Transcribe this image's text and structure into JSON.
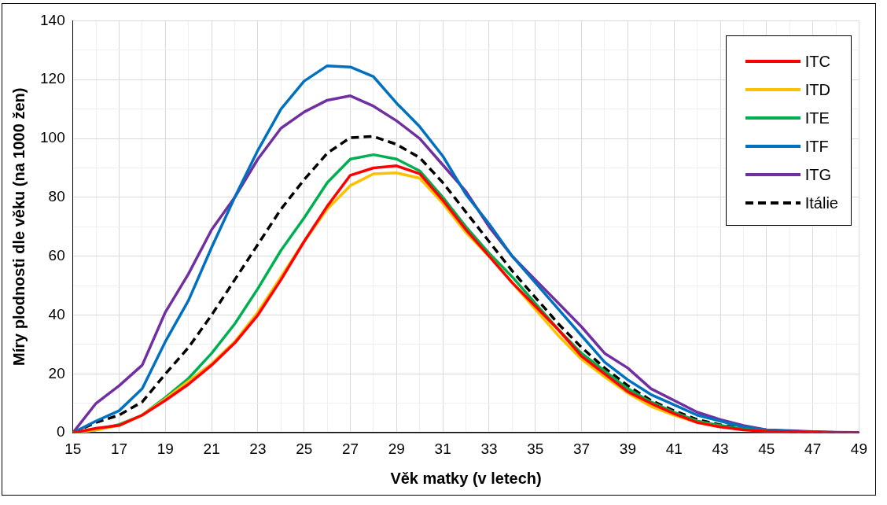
{
  "chart_data": {
    "type": "line",
    "xlabel": "Věk matky (v letech)",
    "ylabel": "Míry plodnosti dle věku (na 1000 žen)",
    "x": [
      15,
      16,
      17,
      18,
      19,
      20,
      21,
      22,
      23,
      24,
      25,
      26,
      27,
      28,
      29,
      30,
      31,
      32,
      33,
      34,
      35,
      36,
      37,
      38,
      39,
      40,
      41,
      42,
      43,
      44,
      45,
      46,
      47,
      48,
      49
    ],
    "xlim": [
      15,
      49
    ],
    "xticks": [
      15,
      {
        "value": 16,
        "label": null
      },
      17,
      {
        "value": 18,
        "label": null
      },
      19,
      {
        "value": 20,
        "label": null
      },
      21,
      {
        "value": 22,
        "label": null
      },
      23,
      {
        "value": 24,
        "label": null
      },
      25,
      {
        "value": 26,
        "label": null
      },
      27,
      {
        "value": 28,
        "label": null
      },
      29,
      {
        "value": 30,
        "label": null
      },
      31,
      {
        "value": 32,
        "label": null
      },
      33,
      {
        "value": 34,
        "label": null
      },
      35,
      {
        "value": 36,
        "label": null
      },
      37,
      {
        "value": 38,
        "label": null
      },
      39,
      {
        "value": 40,
        "label": null
      },
      41,
      {
        "value": 42,
        "label": null
      },
      43,
      {
        "value": 44,
        "label": null
      },
      45,
      {
        "value": 46,
        "label": null
      },
      47,
      {
        "value": 48,
        "label": null
      },
      49
    ],
    "ylim": [
      0,
      140
    ],
    "yticks": [
      0,
      {
        "value": 10,
        "label": null
      },
      20,
      {
        "value": 30,
        "label": null
      },
      40,
      {
        "value": 50,
        "label": null
      },
      60,
      {
        "value": 70,
        "label": null
      },
      80,
      {
        "value": 90,
        "label": null
      },
      100,
      {
        "value": 110,
        "label": null
      },
      120,
      {
        "value": 130,
        "label": null
      },
      140
    ],
    "grid": true,
    "legend": "top right",
    "marker": "none",
    "series": [
      {
        "name": "ITC",
        "color": "#ff0000",
        "values": [
          0,
          1.5,
          2.5,
          6,
          11,
          16.5,
          23,
          30.5,
          40,
          52,
          65,
          77,
          87.5,
          90,
          90.7,
          88,
          79,
          69,
          60,
          51,
          43,
          35,
          26,
          20,
          14,
          10,
          6.5,
          3.5,
          2,
          1,
          0.5,
          0.3,
          0.1,
          0,
          0
        ]
      },
      {
        "name": "ITD",
        "color": "#ffc000",
        "values": [
          0,
          1,
          2.5,
          6,
          11.5,
          17.5,
          23.5,
          31,
          41,
          53,
          65,
          76,
          84,
          88,
          88.3,
          86.5,
          78,
          68,
          60,
          51,
          42,
          33,
          25,
          19,
          13.5,
          9,
          6,
          3.5,
          2,
          null,
          null,
          null,
          null,
          null,
          null
        ]
      },
      {
        "name": "ITE",
        "color": "#00b050",
        "values": [
          0,
          1,
          2.8,
          6,
          12,
          18.5,
          27,
          37,
          49,
          62,
          73,
          85,
          93,
          94.5,
          93,
          89,
          80,
          70,
          61,
          53,
          44,
          35,
          27,
          21,
          15,
          10.5,
          7,
          4,
          2.5,
          1.2,
          0.6,
          null,
          null,
          null,
          null
        ]
      },
      {
        "name": "ITF",
        "color": "#0070c0",
        "values": [
          0,
          4,
          7.5,
          15,
          31,
          45,
          63,
          80,
          96,
          110,
          119.5,
          124.7,
          124.3,
          121,
          112,
          104,
          94,
          81,
          71,
          60,
          51,
          42,
          33,
          24,
          18,
          13,
          9.5,
          6,
          4,
          2,
          1,
          0.5,
          0.3,
          0.1,
          0
        ]
      },
      {
        "name": "ITG",
        "color": "#7030a0",
        "values": [
          0,
          10,
          16,
          23,
          41,
          54,
          69,
          80,
          93,
          103.5,
          109,
          113,
          114.5,
          111,
          106,
          100,
          91,
          82,
          70,
          60,
          52,
          44,
          36,
          27,
          22,
          15,
          11,
          7,
          4.5,
          2.5,
          1,
          0.7,
          0.4,
          0.2,
          0.1
        ]
      },
      {
        "name": "Itálie",
        "color": "#000000",
        "line_style": "dashed",
        "values": [
          0,
          3.5,
          6,
          10.5,
          20,
          29,
          40,
          52,
          64,
          76,
          86,
          95,
          100.3,
          100.7,
          98,
          93.5,
          85,
          75,
          65,
          55,
          46,
          37,
          29,
          22,
          16,
          11,
          7.5,
          4.5,
          2.7,
          1.5,
          0.7,
          0.4,
          0.2,
          0.1,
          0
        ]
      }
    ]
  }
}
